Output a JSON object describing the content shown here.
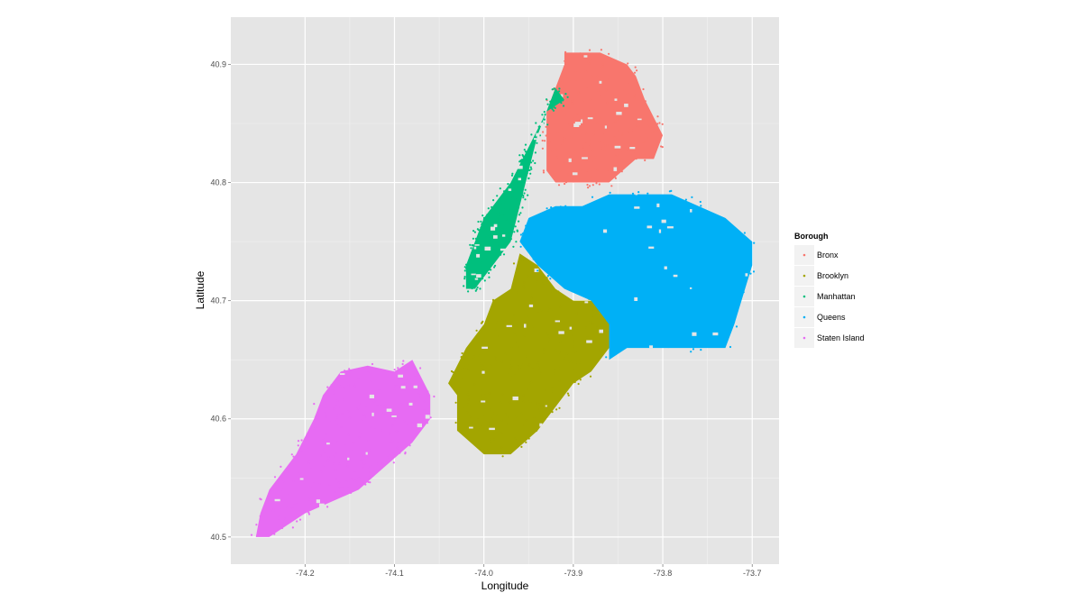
{
  "chart_data": {
    "type": "scatter",
    "title": "",
    "xlabel": "Longitude",
    "ylabel": "Latitude",
    "xlim": [
      -74.283,
      -73.67
    ],
    "ylim": [
      40.477,
      40.94
    ],
    "x_ticks": [
      -74.2,
      -74.1,
      -74.0,
      -73.9,
      -73.8,
      -73.7
    ],
    "x_tick_labels": [
      "-74.2",
      "-74.1",
      "-74.0",
      "-73.9",
      "-73.8",
      "-73.7"
    ],
    "y_ticks": [
      40.5,
      40.6,
      40.7,
      40.8,
      40.9
    ],
    "y_tick_labels": [
      "40.5",
      "40.6",
      "40.7",
      "40.8",
      "40.9"
    ],
    "grid": true,
    "legend": {
      "title": "Borough",
      "position": "right"
    },
    "series": [
      {
        "name": "Bronx",
        "color": "#F8766D",
        "region": [
          [
            -73.91,
            40.9
          ],
          [
            -73.91,
            40.91
          ],
          [
            -73.89,
            40.91
          ],
          [
            -73.87,
            40.91
          ],
          [
            -73.84,
            40.9
          ],
          [
            -73.83,
            40.89
          ],
          [
            -73.82,
            40.87
          ],
          [
            -73.8,
            40.84
          ],
          [
            -73.81,
            40.82
          ],
          [
            -73.83,
            40.82
          ],
          [
            -73.86,
            40.8
          ],
          [
            -73.89,
            40.8
          ],
          [
            -73.92,
            40.8
          ],
          [
            -73.93,
            40.81
          ],
          [
            -73.93,
            40.86
          ],
          [
            -73.92,
            40.88
          ]
        ]
      },
      {
        "name": "Brooklyn",
        "color": "#A3A500",
        "region": [
          [
            -73.96,
            40.74
          ],
          [
            -73.94,
            40.73
          ],
          [
            -73.92,
            40.71
          ],
          [
            -73.9,
            40.7
          ],
          [
            -73.88,
            40.7
          ],
          [
            -73.86,
            40.69
          ],
          [
            -73.86,
            40.66
          ],
          [
            -73.88,
            40.64
          ],
          [
            -73.9,
            40.63
          ],
          [
            -73.92,
            40.61
          ],
          [
            -73.94,
            40.59
          ],
          [
            -73.97,
            40.57
          ],
          [
            -74.0,
            40.57
          ],
          [
            -74.03,
            40.59
          ],
          [
            -74.03,
            40.62
          ],
          [
            -74.04,
            40.63
          ],
          [
            -74.02,
            40.66
          ],
          [
            -74.0,
            40.68
          ],
          [
            -73.99,
            40.7
          ],
          [
            -73.97,
            40.71
          ]
        ]
      },
      {
        "name": "Manhattan",
        "color": "#00BF7D",
        "region": [
          [
            -73.91,
            40.87
          ],
          [
            -73.92,
            40.88
          ],
          [
            -73.93,
            40.86
          ],
          [
            -73.94,
            40.84
          ],
          [
            -73.95,
            40.81
          ],
          [
            -73.96,
            40.78
          ],
          [
            -73.97,
            40.75
          ],
          [
            -73.99,
            40.73
          ],
          [
            -74.01,
            40.71
          ],
          [
            -74.02,
            40.71
          ],
          [
            -74.02,
            40.73
          ],
          [
            -74.01,
            40.75
          ],
          [
            -74.0,
            40.77
          ],
          [
            -73.97,
            40.8
          ],
          [
            -73.95,
            40.83
          ],
          [
            -73.93,
            40.86
          ]
        ]
      },
      {
        "name": "Queens",
        "color": "#00B0F6",
        "region": [
          [
            -73.96,
            40.75
          ],
          [
            -73.95,
            40.77
          ],
          [
            -73.92,
            40.78
          ],
          [
            -73.89,
            40.78
          ],
          [
            -73.86,
            40.79
          ],
          [
            -73.83,
            40.79
          ],
          [
            -73.79,
            40.79
          ],
          [
            -73.76,
            40.78
          ],
          [
            -73.73,
            40.77
          ],
          [
            -73.7,
            40.75
          ],
          [
            -73.7,
            40.73
          ],
          [
            -73.72,
            40.68
          ],
          [
            -73.73,
            40.66
          ],
          [
            -73.76,
            40.66
          ],
          [
            -73.79,
            40.66
          ],
          [
            -73.82,
            40.66
          ],
          [
            -73.84,
            40.66
          ],
          [
            -73.86,
            40.65
          ],
          [
            -73.86,
            40.68
          ],
          [
            -73.88,
            40.7
          ],
          [
            -73.91,
            40.71
          ],
          [
            -73.94,
            40.73
          ]
        ]
      },
      {
        "name": "Staten Island",
        "color": "#E76BF3",
        "region": [
          [
            -74.1,
            40.64
          ],
          [
            -74.08,
            40.65
          ],
          [
            -74.06,
            40.62
          ],
          [
            -74.06,
            40.6
          ],
          [
            -74.08,
            40.58
          ],
          [
            -74.11,
            40.56
          ],
          [
            -74.14,
            40.54
          ],
          [
            -74.17,
            40.53
          ],
          [
            -74.2,
            40.52
          ],
          [
            -74.22,
            40.51
          ],
          [
            -74.24,
            40.5
          ],
          [
            -74.255,
            40.5
          ],
          [
            -74.25,
            40.52
          ],
          [
            -74.24,
            40.54
          ],
          [
            -74.21,
            40.57
          ],
          [
            -74.19,
            40.6
          ],
          [
            -74.18,
            40.62
          ],
          [
            -74.16,
            40.64
          ],
          [
            -74.13,
            40.645
          ]
        ]
      }
    ]
  }
}
